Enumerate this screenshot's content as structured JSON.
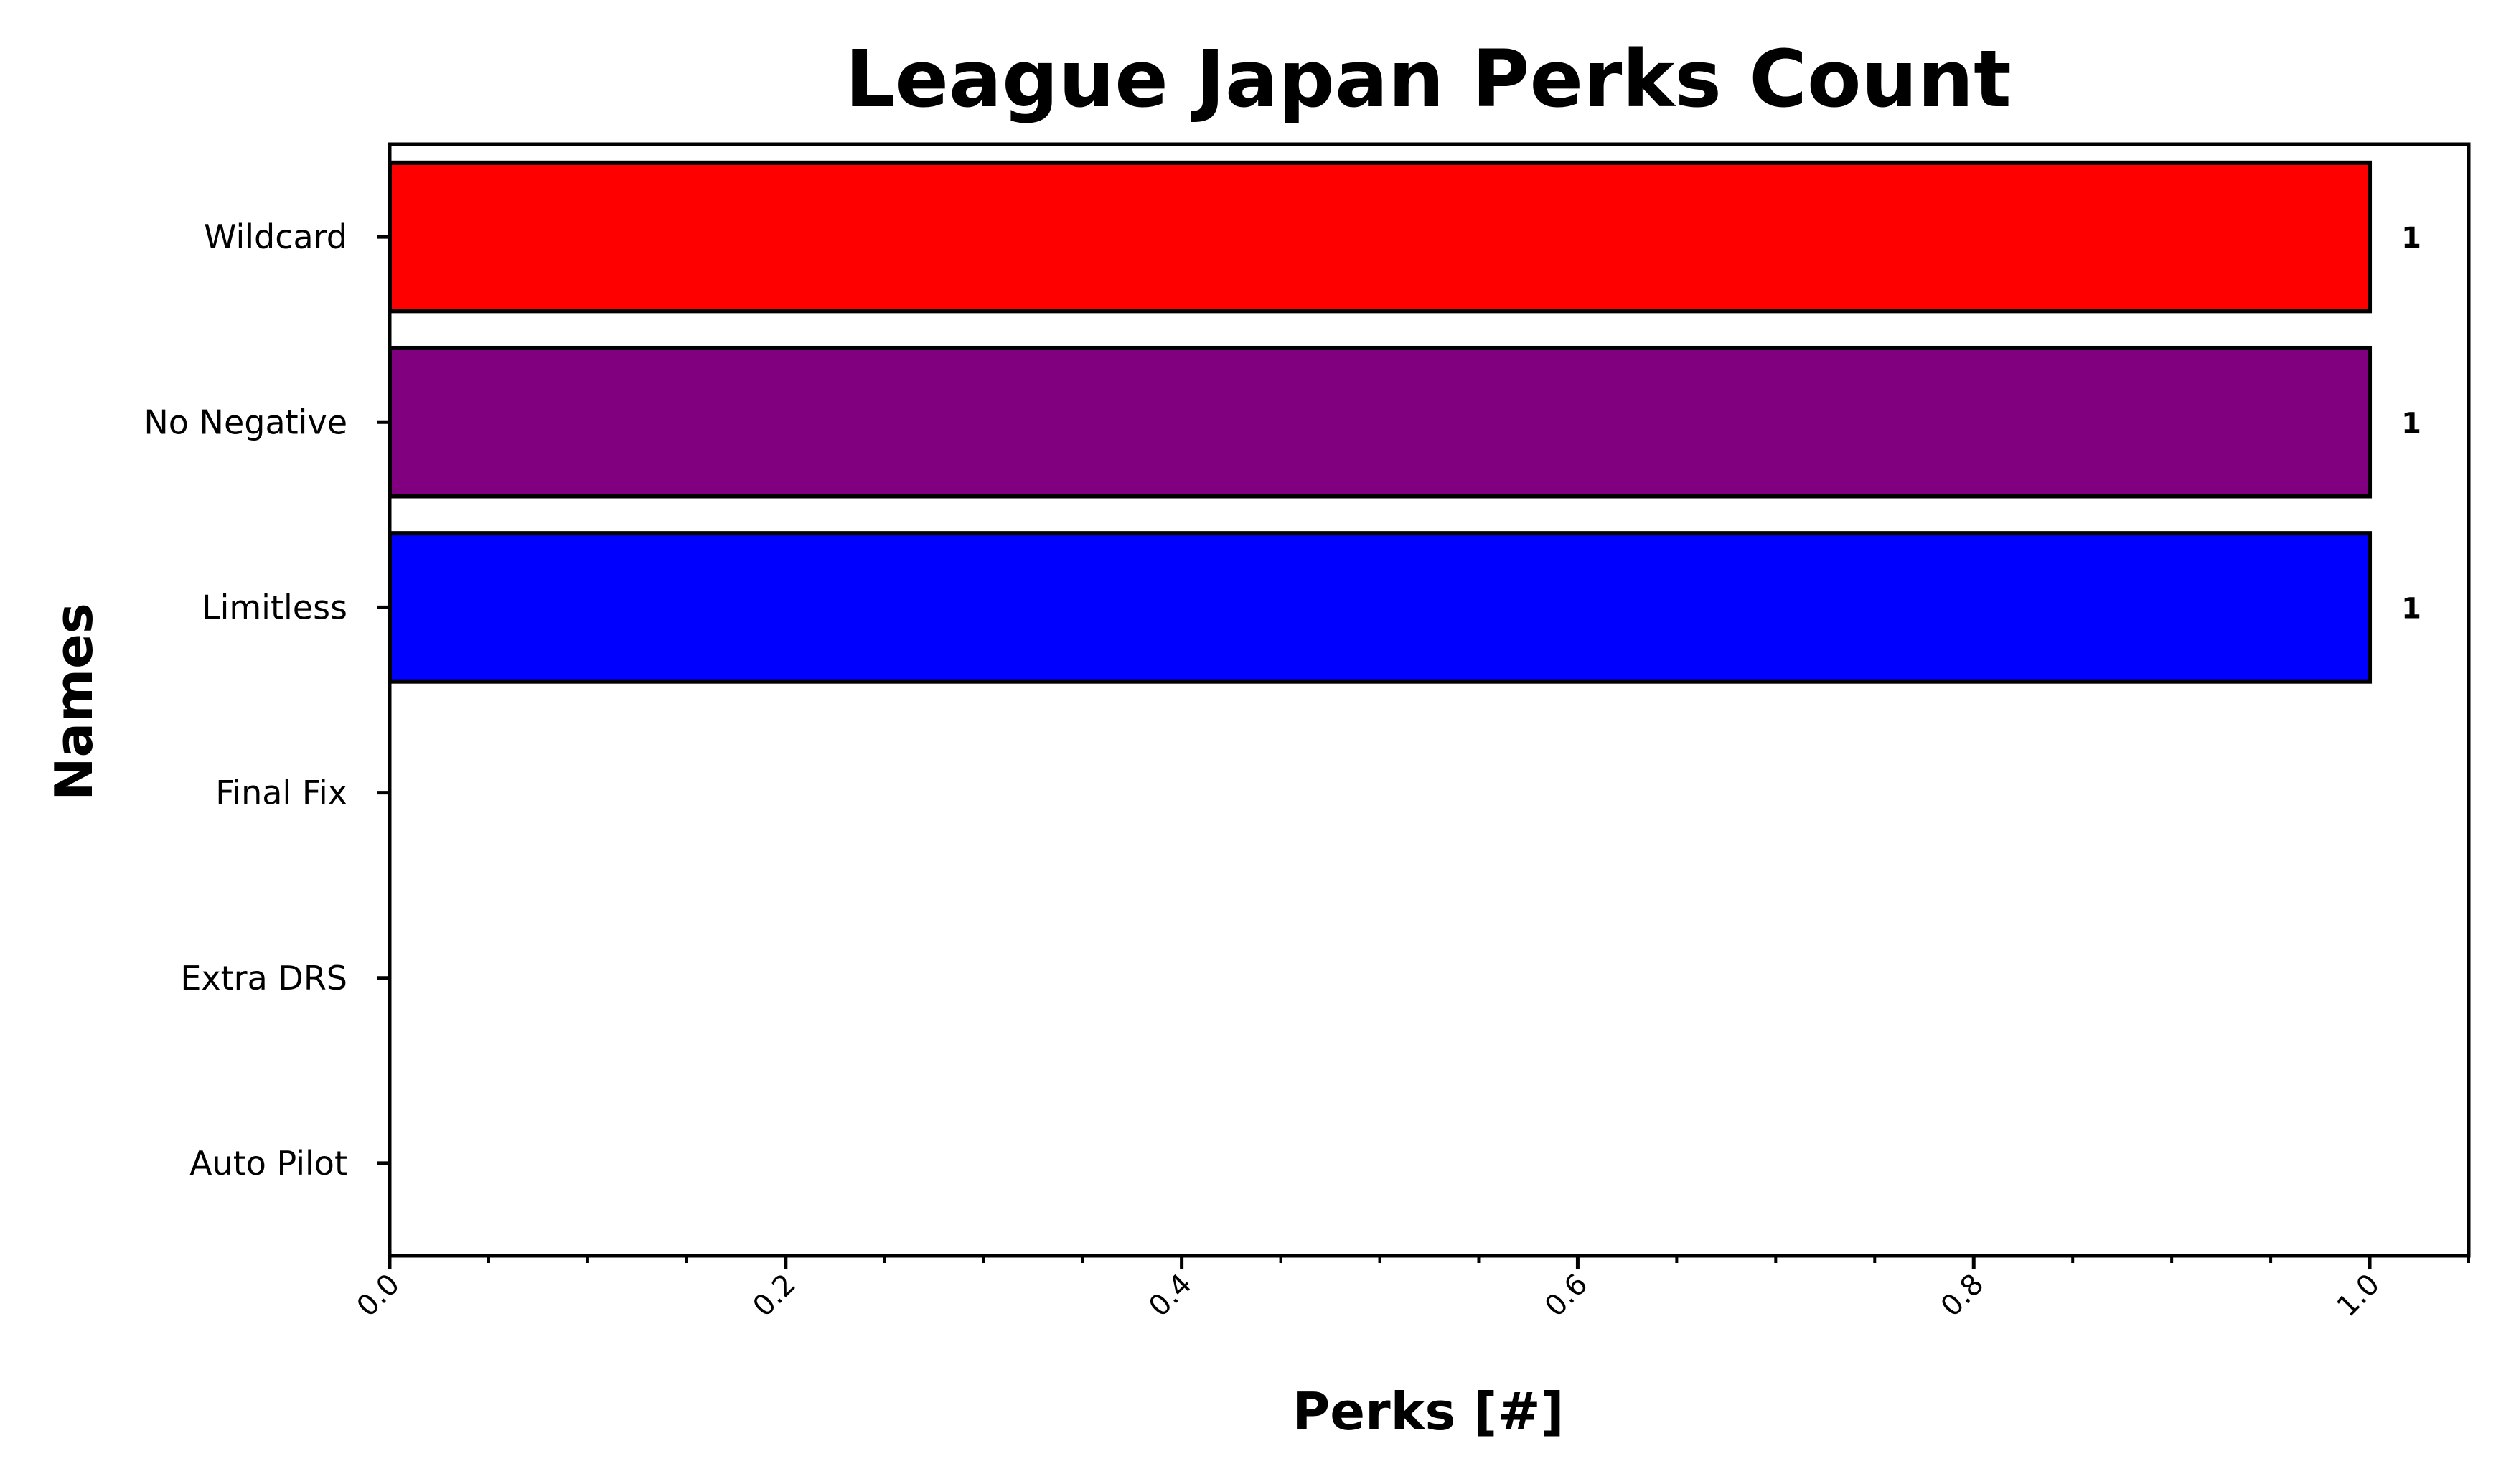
{
  "chart_data": {
    "type": "bar",
    "orientation": "horizontal",
    "title": "League Japan Perks Count",
    "xlabel": "Perks [#]",
    "ylabel": "Names",
    "categories": [
      "Wildcard",
      "No Negative",
      "Limitless",
      "Final Fix",
      "Extra DRS",
      "Auto Pilot"
    ],
    "values": [
      1,
      1,
      1,
      0,
      0,
      0
    ],
    "value_labels": [
      "1",
      "1",
      "1",
      "",
      "",
      ""
    ],
    "colors": [
      "#ff0000",
      "#800080",
      "#0000ff",
      "#008000",
      "#ffa500",
      "#00bfff"
    ],
    "edge_color": "#000000",
    "xlim": [
      0,
      1.05
    ],
    "xticks": [
      0.0,
      0.2,
      0.4,
      0.6,
      0.8,
      1.0
    ],
    "xtick_labels": [
      "0.0",
      "0.2",
      "0.4",
      "0.6",
      "0.8",
      "1.0"
    ],
    "xtick_label_rotation": 45,
    "minor_xticks": true,
    "grid": false,
    "legend": false
  }
}
